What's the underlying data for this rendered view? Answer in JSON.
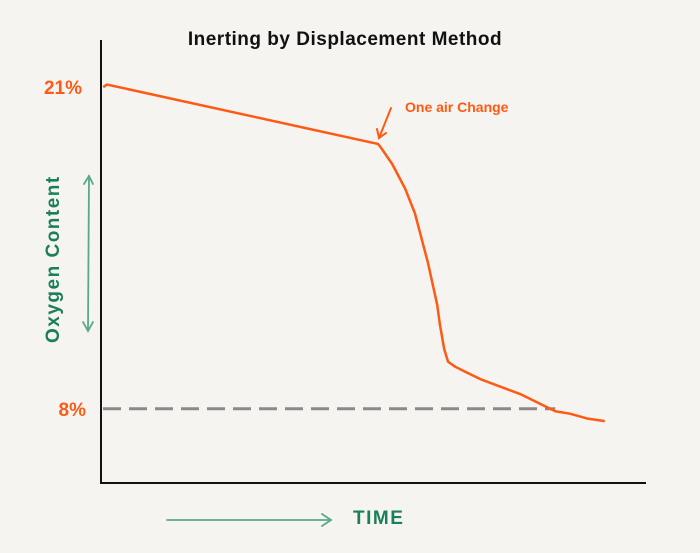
{
  "chart_data": {
    "type": "line",
    "title": "Inerting by Displacement Method",
    "xlabel": "TIME",
    "ylabel": "Oxygen Content",
    "xlim": [
      0,
      100
    ],
    "ylim": [
      5,
      22.9
    ],
    "grid": false,
    "y_tick_labels": [
      {
        "value": 21,
        "label": "21%"
      },
      {
        "value": 8,
        "label": "8%"
      }
    ],
    "reference_line": {
      "value": 8,
      "style": "dashed",
      "color": "#8a8a8a",
      "x_end": 83.5
    },
    "annotation": {
      "text": "One air Change",
      "x": 50.9,
      "y": 18.7
    },
    "series": [
      {
        "name": "Oxygen Content",
        "color": "#ff5a14",
        "x": [
          0.4,
          1.1,
          50.9,
          51.3,
          53.5,
          55.9,
          57.7,
          60.1,
          61.8,
          62.3,
          63.1,
          63.8,
          65.1,
          66.9,
          69.7,
          73.3,
          77.0,
          80.7,
          83.5,
          86.2,
          89.5,
          92.6
        ],
        "y": [
          21.0,
          21.1,
          18.7,
          18.6,
          17.9,
          16.9,
          15.9,
          13.9,
          12.2,
          11.4,
          10.4,
          9.9,
          9.7,
          9.5,
          9.2,
          8.9,
          8.6,
          8.2,
          7.9,
          7.8,
          7.6,
          7.5
        ]
      }
    ],
    "colors": {
      "accent": "#ff5a14",
      "label": "#1a7f5a",
      "arrow": "#5aa88a"
    }
  }
}
